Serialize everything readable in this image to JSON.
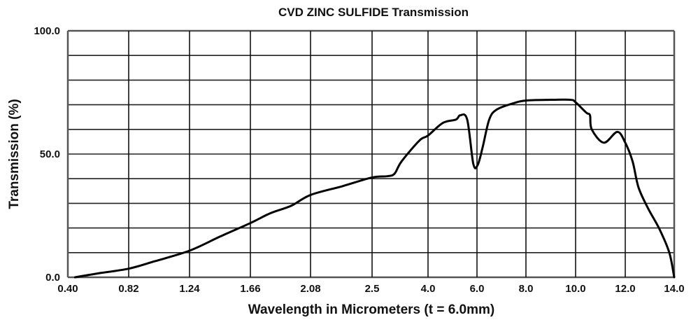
{
  "chart_data": {
    "type": "line",
    "title": "CVD ZINC SULFIDE Transmission",
    "xlabel": "Wavelength in Micrometers (t = 6.0mm)",
    "ylabel": "Transmission  (%)",
    "ylim": [
      0,
      100
    ],
    "xlim": [
      0.4,
      14.0
    ],
    "x_scale": "piecewise-linear between tick labels",
    "xticks": [
      0.4,
      0.82,
      1.24,
      1.66,
      2.08,
      2.5,
      4.0,
      6.0,
      8.0,
      10.0,
      12.0,
      14.0
    ],
    "xtick_labels": [
      "0.40",
      "0.82",
      "1.24",
      "1.66",
      "2.08",
      "2.5",
      "4.0",
      "6.0",
      "8.0",
      "10.0",
      "12.0",
      "14.0"
    ],
    "ytick_labels": [
      {
        "value": 100,
        "label": "100.0"
      },
      {
        "value": 50,
        "label": "50.0"
      },
      {
        "value": 0,
        "label": "0.0"
      }
    ],
    "ygrid_step": 10,
    "grid": true,
    "line_color": "#000000",
    "series": [
      {
        "name": "Transmission",
        "x": [
          0.45,
          0.6,
          0.82,
          1.0,
          1.24,
          1.45,
          1.66,
          1.8,
          1.945,
          2.08,
          2.3,
          2.5,
          2.9,
          3.1,
          3.29,
          3.77,
          4.0,
          4.6,
          5.14,
          5.31,
          5.6,
          5.85,
          6.03,
          6.23,
          6.5,
          6.8,
          7.45,
          8.0,
          9.0,
          9.8,
          10.0,
          10.43,
          10.58,
          10.65,
          11.14,
          11.68,
          12.0,
          12.3,
          12.54,
          12.93,
          13.4,
          13.8,
          14.0
        ],
        "y": [
          0,
          1.5,
          3.5,
          6.5,
          10.8,
          16.5,
          22,
          26,
          29,
          33.4,
          37,
          40.5,
          41,
          42,
          47,
          55.5,
          57.5,
          62.6,
          64,
          65.7,
          64,
          46,
          45.6,
          52.7,
          64,
          68,
          70.5,
          71.7,
          72,
          72,
          71,
          66.8,
          65.7,
          60,
          54.6,
          59,
          54.6,
          47,
          36.5,
          28,
          19.5,
          10,
          0
        ]
      }
    ]
  }
}
